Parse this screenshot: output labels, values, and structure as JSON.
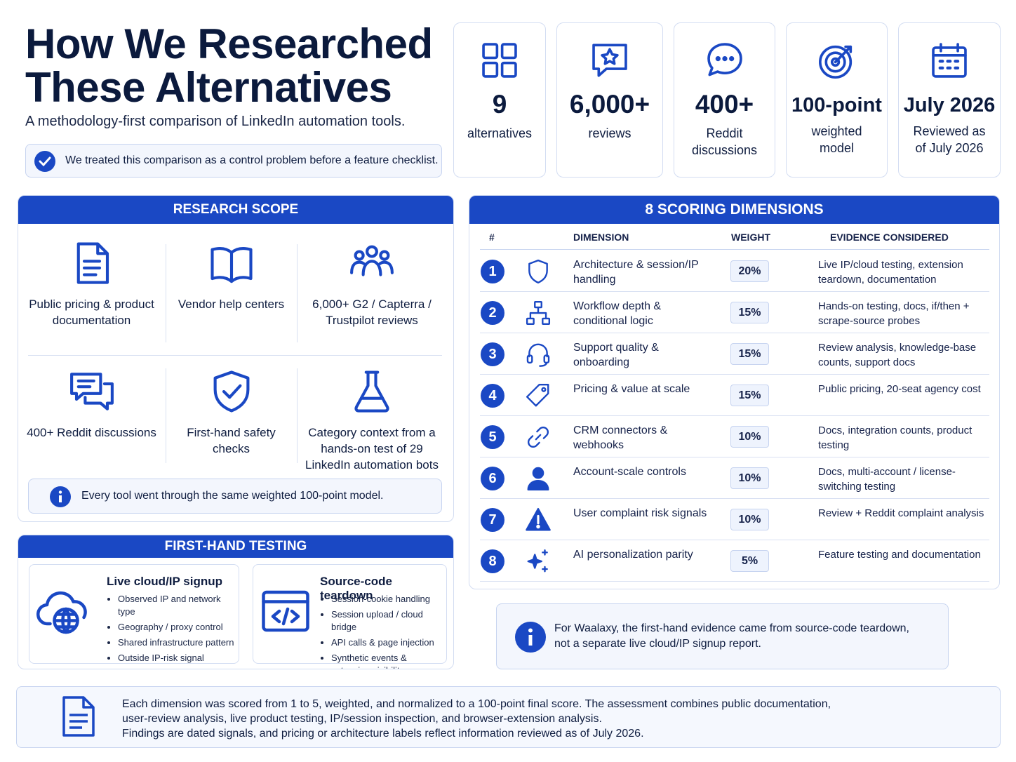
{
  "header": {
    "title": "How We Researched These Alternatives",
    "subtitle": "A methodology-first comparison of LinkedIn automation tools.",
    "note": "We treated this comparison as a control problem before a feature checklist."
  },
  "stats": [
    {
      "value": "9",
      "label": "alternatives"
    },
    {
      "value": "6,000+",
      "label": "reviews"
    },
    {
      "value": "400+",
      "label": "Reddit discussions"
    },
    {
      "value": "100-point",
      "label": "weighted model"
    },
    {
      "value": "July 2026",
      "label": "Reviewed as of July 2026"
    }
  ],
  "research_scope": {
    "title": "RESEARCH SCOPE",
    "items": [
      "Public pricing & product documentation",
      "Vendor help centers",
      "6,000+ G2 / Capterra / Trustpilot reviews",
      "400+ Reddit discussions",
      "First-hand safety checks",
      "Category context from a hands-on test of 29 LinkedIn automation bots"
    ],
    "note": "Every tool went through the same weighted 100-point model."
  },
  "first_hand_testing": {
    "title": "FIRST-HAND TESTING",
    "cards": [
      {
        "title": "Live cloud/IP signup",
        "bullets": [
          "Observed IP and network type",
          "Geography / proxy control",
          "Shared infrastructure pattern",
          "Outside IP-risk signal"
        ]
      },
      {
        "title": "Source-code teardown",
        "bullets": [
          "Session-cookie handling",
          "Session upload / cloud bridge",
          "API calls & page injection",
          "Synthetic events & extension visibility"
        ]
      }
    ]
  },
  "scoring": {
    "title": "8 SCORING DIMENSIONS",
    "columns": [
      "#",
      "DIMENSION",
      "WEIGHT",
      "EVIDENCE CONSIDERED"
    ],
    "rows": [
      {
        "num": "1",
        "dimension": "Architecture & session/IP handling",
        "weight": "20%",
        "evidence": "Live IP/cloud testing, extension teardown, documentation"
      },
      {
        "num": "2",
        "dimension": "Workflow depth & conditional logic",
        "weight": "15%",
        "evidence": "Hands-on testing, docs, if/then + scrape-source probes"
      },
      {
        "num": "3",
        "dimension": "Support quality & onboarding",
        "weight": "15%",
        "evidence": "Review analysis, knowledge-base counts, support docs"
      },
      {
        "num": "4",
        "dimension": "Pricing & value at scale",
        "weight": "15%",
        "evidence": "Public pricing, 20-seat agency cost"
      },
      {
        "num": "5",
        "dimension": "CRM connectors & webhooks",
        "weight": "10%",
        "evidence": "Docs, integration counts, product testing"
      },
      {
        "num": "6",
        "dimension": "Account-scale controls",
        "weight": "10%",
        "evidence": "Docs, multi-account / license-switching testing"
      },
      {
        "num": "7",
        "dimension": "User complaint risk signals",
        "weight": "10%",
        "evidence": "Review + Reddit complaint analysis"
      },
      {
        "num": "8",
        "dimension": "AI personalization parity",
        "weight": "5%",
        "evidence": "Feature testing and documentation"
      }
    ]
  },
  "callout": "For Waalaxy, the first-hand evidence came from source-code teardown, not a separate live cloud/IP signup report.",
  "footer": [
    "Each dimension was scored from 1 to 5, weighted, and normalized to a 100-point final score. The assessment combines public documentation,",
    "user-review analysis, live product testing, IP/session inspection, and browser-extension analysis.",
    "Findings are dated signals, and pricing or architecture labels reflect information reviewed as of July 2026."
  ]
}
